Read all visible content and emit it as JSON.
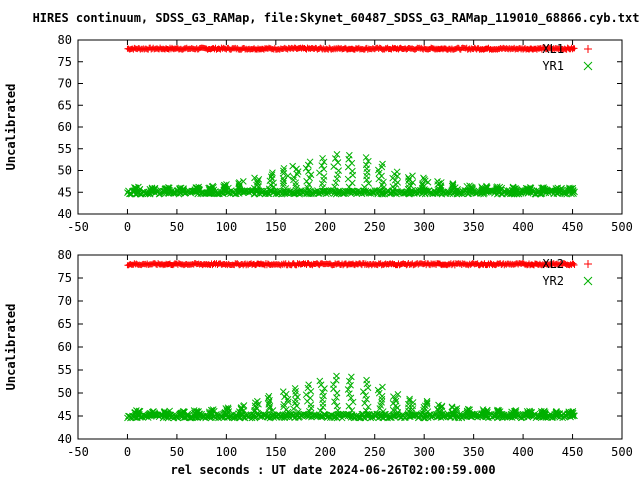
{
  "title": "HIRES continuum, SDSS_G3_RAMap, file:Skynet_60487_SDSS_G3_RAMap_119010_68866.cyb.txt",
  "xlabel": "rel seconds : UT date 2024-06-26T02:00:59.000",
  "chart_data": [
    {
      "type": "scatter",
      "ylabel": "Uncalibrated",
      "xlim": [
        -50,
        500
      ],
      "ylim": [
        40,
        80
      ],
      "xticks": [
        -50,
        0,
        50,
        100,
        150,
        200,
        250,
        300,
        350,
        400,
        450,
        500
      ],
      "yticks": [
        40,
        45,
        50,
        55,
        60,
        65,
        70,
        75,
        80
      ],
      "legend_position": "top-right",
      "series": [
        {
          "name": "XL1",
          "marker": "+",
          "color": "#ff0000",
          "x_range": [
            0,
            452
          ],
          "baseline": 78.0,
          "jitter": 0.5
        },
        {
          "name": "YR1",
          "marker": "x",
          "color": "#00b000",
          "x_range": [
            0,
            452
          ],
          "baseline": 45.0,
          "jitter": 0.9,
          "peaks": [
            [
              10,
              46.2
            ],
            [
              25,
              46.0
            ],
            [
              40,
              46.1
            ],
            [
              55,
              46.0
            ],
            [
              70,
              46.2
            ],
            [
              85,
              46.4
            ],
            [
              100,
              46.8
            ],
            [
              115,
              47.5
            ],
            [
              130,
              48.3
            ],
            [
              145,
              49.5
            ],
            [
              160,
              50.5
            ],
            [
              170,
              51.0
            ],
            [
              183,
              52.0
            ],
            [
              197,
              52.8
            ],
            [
              211,
              53.7
            ],
            [
              226,
              53.5
            ],
            [
              241,
              53.0
            ],
            [
              256,
              51.5
            ],
            [
              271,
              49.7
            ],
            [
              286,
              48.8
            ],
            [
              301,
              48.3
            ],
            [
              316,
              47.5
            ],
            [
              331,
              47.0
            ],
            [
              346,
              46.5
            ],
            [
              361,
              46.4
            ],
            [
              376,
              46.3
            ],
            [
              391,
              46.2
            ],
            [
              406,
              46.1
            ],
            [
              421,
              46.1
            ],
            [
              436,
              46.0
            ],
            [
              448,
              46.0
            ]
          ]
        }
      ]
    },
    {
      "type": "scatter",
      "ylabel": "Uncalibrated",
      "xlim": [
        -50,
        500
      ],
      "ylim": [
        40,
        80
      ],
      "xticks": [
        -50,
        0,
        50,
        100,
        150,
        200,
        250,
        300,
        350,
        400,
        450,
        500
      ],
      "yticks": [
        40,
        45,
        50,
        55,
        60,
        65,
        70,
        75,
        80
      ],
      "legend_position": "top-right",
      "series": [
        {
          "name": "XL2",
          "marker": "+",
          "color": "#ff0000",
          "x_range": [
            0,
            452
          ],
          "baseline": 78.0,
          "jitter": 0.5
        },
        {
          "name": "YR2",
          "marker": "x",
          "color": "#00b000",
          "x_range": [
            0,
            452
          ],
          "baseline": 45.0,
          "jitter": 0.9,
          "peaks": [
            [
              10,
              46.2
            ],
            [
              25,
              46.0
            ],
            [
              40,
              46.1
            ],
            [
              55,
              46.0
            ],
            [
              70,
              46.2
            ],
            [
              85,
              46.4
            ],
            [
              100,
              46.8
            ],
            [
              115,
              47.3
            ],
            [
              130,
              48.2
            ],
            [
              145,
              49.3
            ],
            [
              160,
              50.3
            ],
            [
              170,
              51.0
            ],
            [
              183,
              51.8
            ],
            [
              197,
              52.6
            ],
            [
              211,
              53.7
            ],
            [
              226,
              53.5
            ],
            [
              241,
              52.8
            ],
            [
              256,
              51.3
            ],
            [
              271,
              49.7
            ],
            [
              286,
              48.7
            ],
            [
              301,
              48.2
            ],
            [
              316,
              47.4
            ],
            [
              331,
              47.0
            ],
            [
              346,
              46.5
            ],
            [
              361,
              46.4
            ],
            [
              376,
              46.3
            ],
            [
              391,
              46.2
            ],
            [
              406,
              46.1
            ],
            [
              421,
              46.1
            ],
            [
              436,
              46.0
            ],
            [
              448,
              46.0
            ]
          ]
        }
      ]
    }
  ]
}
